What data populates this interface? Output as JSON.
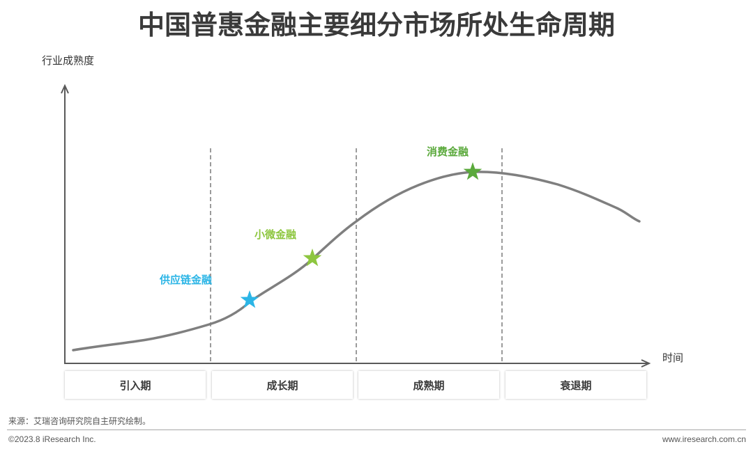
{
  "title": "中国普惠金融主要细分市场所处生命周期",
  "axes": {
    "y_label": "行业成熟度",
    "x_label": "时间"
  },
  "stages": [
    {
      "label": "引入期"
    },
    {
      "label": "成长期"
    },
    {
      "label": "成熟期"
    },
    {
      "label": "衰退期"
    }
  ],
  "markers": [
    {
      "label": "供应链金融",
      "color": "#2BB5E6",
      "icon": "star-icon"
    },
    {
      "label": "小微金融",
      "color": "#8DC63F",
      "icon": "star-icon"
    },
    {
      "label": "消费金融",
      "color": "#5AA93B",
      "icon": "star-icon"
    }
  ],
  "colors": {
    "curve": "#7F7F7F",
    "axis": "#595959",
    "divider": "#7A7A7A"
  },
  "footer": {
    "source": "来源：艾瑞咨询研究院自主研究绘制。",
    "copyright": "©2023.8 iResearch Inc.",
    "website": "www.iresearch.com.cn"
  }
}
